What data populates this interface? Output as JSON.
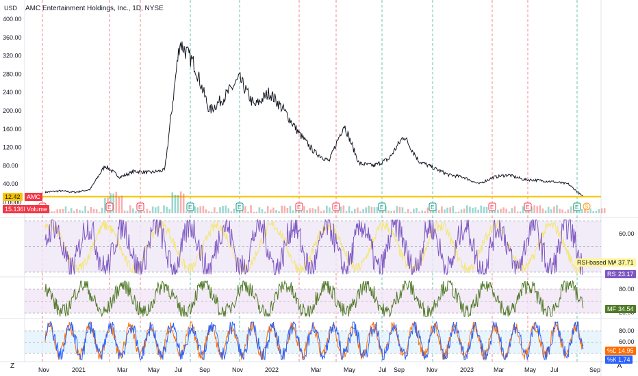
{
  "header": {
    "currency": "USD",
    "title": "AMC Entertainment Holdings, Inc., 1D, NYSE"
  },
  "badges": {
    "price_value": "12.42",
    "price_symbol": "AMC",
    "volume_value": "15.136M",
    "volume_label": "Volume",
    "rsi_ma_label": "RSI-based MA",
    "rsi_ma_value": "37.71",
    "rsi_label": "RSI",
    "rsi_value": "23.17",
    "mf_label": "MF",
    "mf_value": "34.54",
    "d_label": "%D",
    "d_value": "14.95",
    "k_label": "%K",
    "k_value": "1.74"
  },
  "corner_buttons": {
    "left": "Z",
    "right": "A"
  },
  "colors": {
    "price": "#131722",
    "volume_up": "#26a69a",
    "volume_down": "#ef5350",
    "rsi": "#7e57c2",
    "rsi_ma": "#f5e66d",
    "rsi_band": "#ede7f6",
    "mf": "#4f7a28",
    "mf_band": "#f3e5f5",
    "stoch_k": "#2962ff",
    "stoch_d": "#ff6d00",
    "stoch_band": "#e3f2fd",
    "price_line": "#f7c500",
    "red_marker": "#f23645",
    "earnings_marker": "#089981"
  },
  "chart_data": [
    {
      "type": "line",
      "name": "price",
      "title": "AMC Entertainment Holdings, Inc., 1D, NYSE",
      "ylim": [
        0,
        400
      ],
      "y_ticks": [
        "400.00",
        "360.00",
        "320.00",
        "280.00",
        "240.00",
        "200.00",
        "160.00",
        "120.00",
        "80.00",
        "40.00",
        "0.0000"
      ],
      "x_ticks": [
        "Nov",
        "2021",
        "Mar",
        "May",
        "Jul",
        "Sep",
        "Nov",
        "2022",
        "Mar",
        "May",
        "Jul",
        "Sep",
        "Nov",
        "2023",
        "Mar",
        "May",
        "Jul",
        "Sep"
      ],
      "last_price": 12.42,
      "series": [
        {
          "x": [
            "2020-10",
            "2020-11",
            "2020-12",
            "2021-01",
            "2021-01b",
            "2021-02",
            "2021-03",
            "2021-04",
            "2021-05",
            "2021-06",
            "2021-06b",
            "2021-07",
            "2021-08",
            "2021-09",
            "2021-10",
            "2021-11",
            "2021-12",
            "2022-01",
            "2022-02",
            "2022-03",
            "2022-04",
            "2022-05",
            "2022-06",
            "2022-07",
            "2022-08",
            "2022-09",
            "2022-10",
            "2022-11",
            "2022-12",
            "2023-01",
            "2023-02",
            "2023-03",
            "2023-04",
            "2023-05",
            "2023-06",
            "2023-07",
            "2023-08"
          ],
          "values": [
            22,
            25,
            22,
            28,
            80,
            55,
            68,
            65,
            70,
            350,
            300,
            200,
            230,
            270,
            210,
            240,
            200,
            150,
            110,
            90,
            170,
            85,
            80,
            95,
            145,
            90,
            75,
            60,
            55,
            40,
            55,
            60,
            50,
            48,
            45,
            40,
            12
          ]
        }
      ]
    },
    {
      "type": "bar",
      "name": "volume",
      "series": [
        {
          "name": "Volume",
          "last": "15.136M"
        }
      ]
    },
    {
      "type": "line",
      "name": "rsi",
      "y_ticks": [
        "60.00"
      ],
      "series": [
        {
          "name": "RSI",
          "last": 23.17
        },
        {
          "name": "RSI-based MA",
          "last": 37.71
        }
      ]
    },
    {
      "type": "line",
      "name": "mf",
      "y_ticks": [
        "80.00",
        "20.00"
      ],
      "series": [
        {
          "name": "MF",
          "last": 34.54
        }
      ]
    },
    {
      "type": "line",
      "name": "stoch",
      "y_ticks": [
        "80.00",
        "60.00",
        "20.00"
      ],
      "series": [
        {
          "name": "%K",
          "last": 1.74
        },
        {
          "name": "%D",
          "last": 14.95
        }
      ]
    }
  ],
  "event_markers": [
    "E",
    "E",
    "E",
    "E",
    "E",
    "E",
    "E",
    "E",
    "E",
    "E",
    "E",
    "E",
    "S"
  ]
}
